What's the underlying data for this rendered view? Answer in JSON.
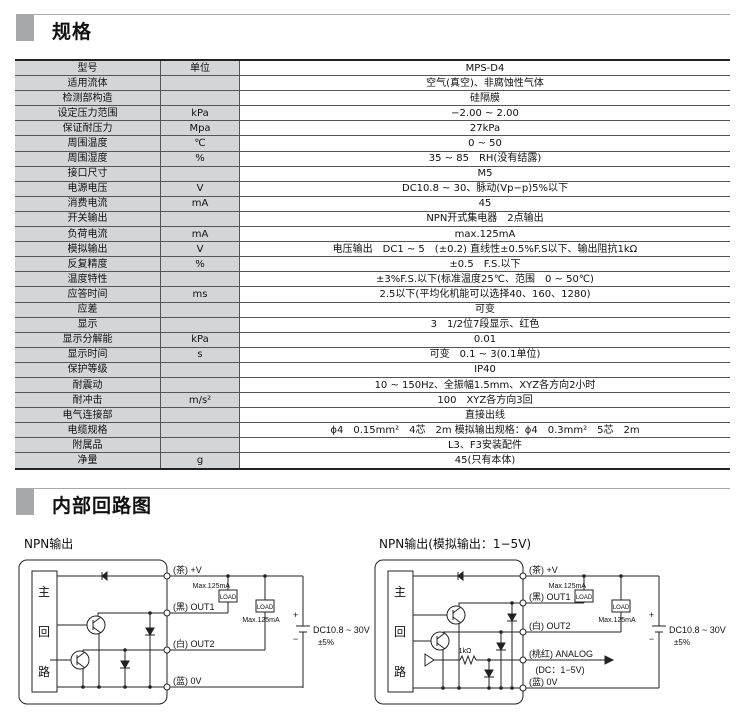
{
  "spec_section": {
    "title": "规格"
  },
  "spec_table": {
    "rows": [
      [
        "型号",
        "单位",
        "MPS-D4"
      ],
      [
        "适用流体",
        "",
        "空气(真空)、非腐蚀性气体"
      ],
      [
        "检测部构造",
        "",
        "硅隔膜"
      ],
      [
        "设定压力范围",
        "kPa",
        "−2.00 ~ 2.00"
      ],
      [
        "保证耐压力",
        "Mpa",
        "27kPa"
      ],
      [
        "周围温度",
        "℃",
        "0 ~ 50"
      ],
      [
        "周围湿度",
        "%",
        "35 ~ 85　RH(没有结露)"
      ],
      [
        "接口尺寸",
        "",
        "M5"
      ],
      [
        "电源电压",
        "V",
        "DC10.8 ~ 30、脉动(Vp−p)5%以下"
      ],
      [
        "消费电流",
        "mA",
        "45"
      ],
      [
        "开关输出",
        "",
        "NPN开式集电器　2点输出"
      ],
      [
        "负荷电流",
        "mA",
        "max.125mA"
      ],
      [
        "模拟输出",
        "V",
        "电压输出　DC1 ~ 5　(±0.2) 直线性±0.5%F.S以下、输出阻抗1kΩ"
      ],
      [
        "反复精度",
        "%",
        "±0.5　F.S.以下"
      ],
      [
        "温度特性",
        "",
        "±3%F.S.以下(标准温度25℃、范围　0 ~ 50℃)"
      ],
      [
        "应答时间",
        "ms",
        "2.5以下(平均化机能可以选择40、160、1280)"
      ],
      [
        "应差",
        "",
        "可变"
      ],
      [
        "显示",
        "",
        "3　1/2位7段显示、红色"
      ],
      [
        "显示分解能",
        "kPa",
        "0.01"
      ],
      [
        "显示时间",
        "s",
        "可变　0.1 ~ 3(0.1单位)"
      ],
      [
        "保护等级",
        "",
        "IP40"
      ],
      [
        "耐震动",
        "",
        "10 ~ 150Hz、全振幅1.5mm、XYZ各方向2小时"
      ],
      [
        "耐冲击",
        "m/s²",
        "100　XYZ各方向3回"
      ],
      [
        "电气连接部",
        "",
        "直接出线"
      ],
      [
        "电缆规格",
        "",
        "ϕ4　0.15mm²　4芯　2m 模拟输出规格：ϕ4　0.3mm²　5芯　2m"
      ],
      [
        "附属品",
        "",
        "L3、F3安装配件"
      ],
      [
        "净量",
        "g",
        "45(只有本体)"
      ]
    ]
  },
  "circuit_section": {
    "title": "内部回路图"
  },
  "diagram_left": {
    "title": "NPN输出",
    "main_circuit": [
      "主",
      "回",
      "路"
    ],
    "terminals": [
      "(茶) +V",
      "(黑) OUT1",
      "(白) OUT2",
      "(蓝) 0V"
    ],
    "load": "LOAD",
    "max_current": "Max.125mA",
    "plus": "+",
    "minus": "−",
    "supply": "DC10.8 ~ 30V",
    "tolerance": "±5%"
  },
  "diagram_right": {
    "title": "NPN输出(模拟输出：1−5V)",
    "main_circuit": [
      "主",
      "回",
      "路"
    ],
    "terminals": [
      "(茶) +V",
      "(黑) OUT1",
      "(白) OUT2",
      "(桃红) ANALOG",
      "(蓝) 0V"
    ],
    "analog_note": "(DC：1−5V)",
    "resistor": "1kΩ",
    "load": "LOAD",
    "max_current": "Max.125mA",
    "plus": "+",
    "minus": "−",
    "supply": "DC10.8 ~ 30V",
    "tolerance": "±5%"
  }
}
